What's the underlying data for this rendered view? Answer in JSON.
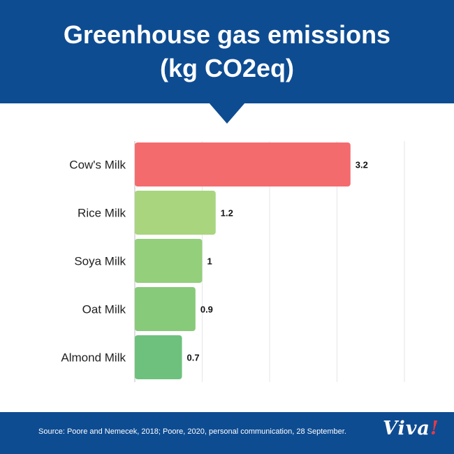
{
  "header": {
    "title_line1": "Greenhouse gas emissions",
    "title_line2": "(kg CO2eq)",
    "background": "#0e4c92"
  },
  "chart_data": {
    "type": "bar",
    "orientation": "horizontal",
    "title": "Greenhouse gas emissions (kg CO2eq)",
    "categories": [
      "Cow's Milk",
      "Rice Milk",
      "Soya Milk",
      "Oat Milk",
      "Almond Milk"
    ],
    "values": [
      3.2,
      1.2,
      1,
      0.9,
      0.7
    ],
    "value_labels": [
      "3.2",
      "1.2",
      "1",
      "0.9",
      "0.7"
    ],
    "colors": [
      "#f46b6e",
      "#a9d57f",
      "#94cf7b",
      "#87ca79",
      "#6dc17d"
    ],
    "xlim": [
      0,
      4
    ],
    "grid": true,
    "legend": "none"
  },
  "footer": {
    "source": "Source:  Poore and Nemecek, 2018; Poore, 2020, personal communication, 28 September.",
    "logo_text": "Viva",
    "logo_mark": "!"
  }
}
